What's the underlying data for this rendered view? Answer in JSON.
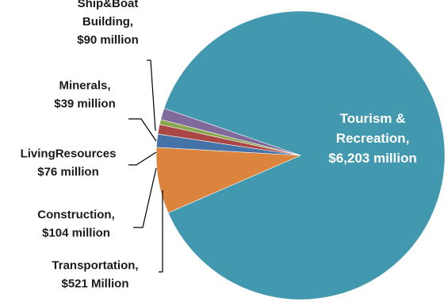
{
  "chart_data": {
    "type": "pie",
    "title": "",
    "unit": "million USD",
    "slices": [
      {
        "category": "Tourism & Recreation",
        "value": 6203,
        "label_lines": [
          "Tourism &",
          "Recreation,",
          "$6,203  million"
        ],
        "color": "#4198AF"
      },
      {
        "category": "Transportation",
        "value": 521,
        "label_lines": [
          "Transportation,",
          "$521 Million"
        ],
        "color": "#DB843D"
      },
      {
        "category": "Construction",
        "value": 104,
        "label_lines": [
          "Construction,",
          "$104 million"
        ],
        "color": "#4572A7"
      },
      {
        "category": "LivingResources",
        "value": 76,
        "label_lines": [
          "LivingResources",
          "$76 million"
        ],
        "color": "#AA4643"
      },
      {
        "category": "Minerals",
        "value": 39,
        "label_lines": [
          "Minerals,",
          "$39 million"
        ],
        "color": "#89A54E"
      },
      {
        "category": "Ship&Boat Building",
        "value": 90,
        "label_lines": [
          "Ship&Boat",
          "Building,",
          "$90 million"
        ],
        "color": "#80699B"
      }
    ],
    "legend": "none"
  }
}
